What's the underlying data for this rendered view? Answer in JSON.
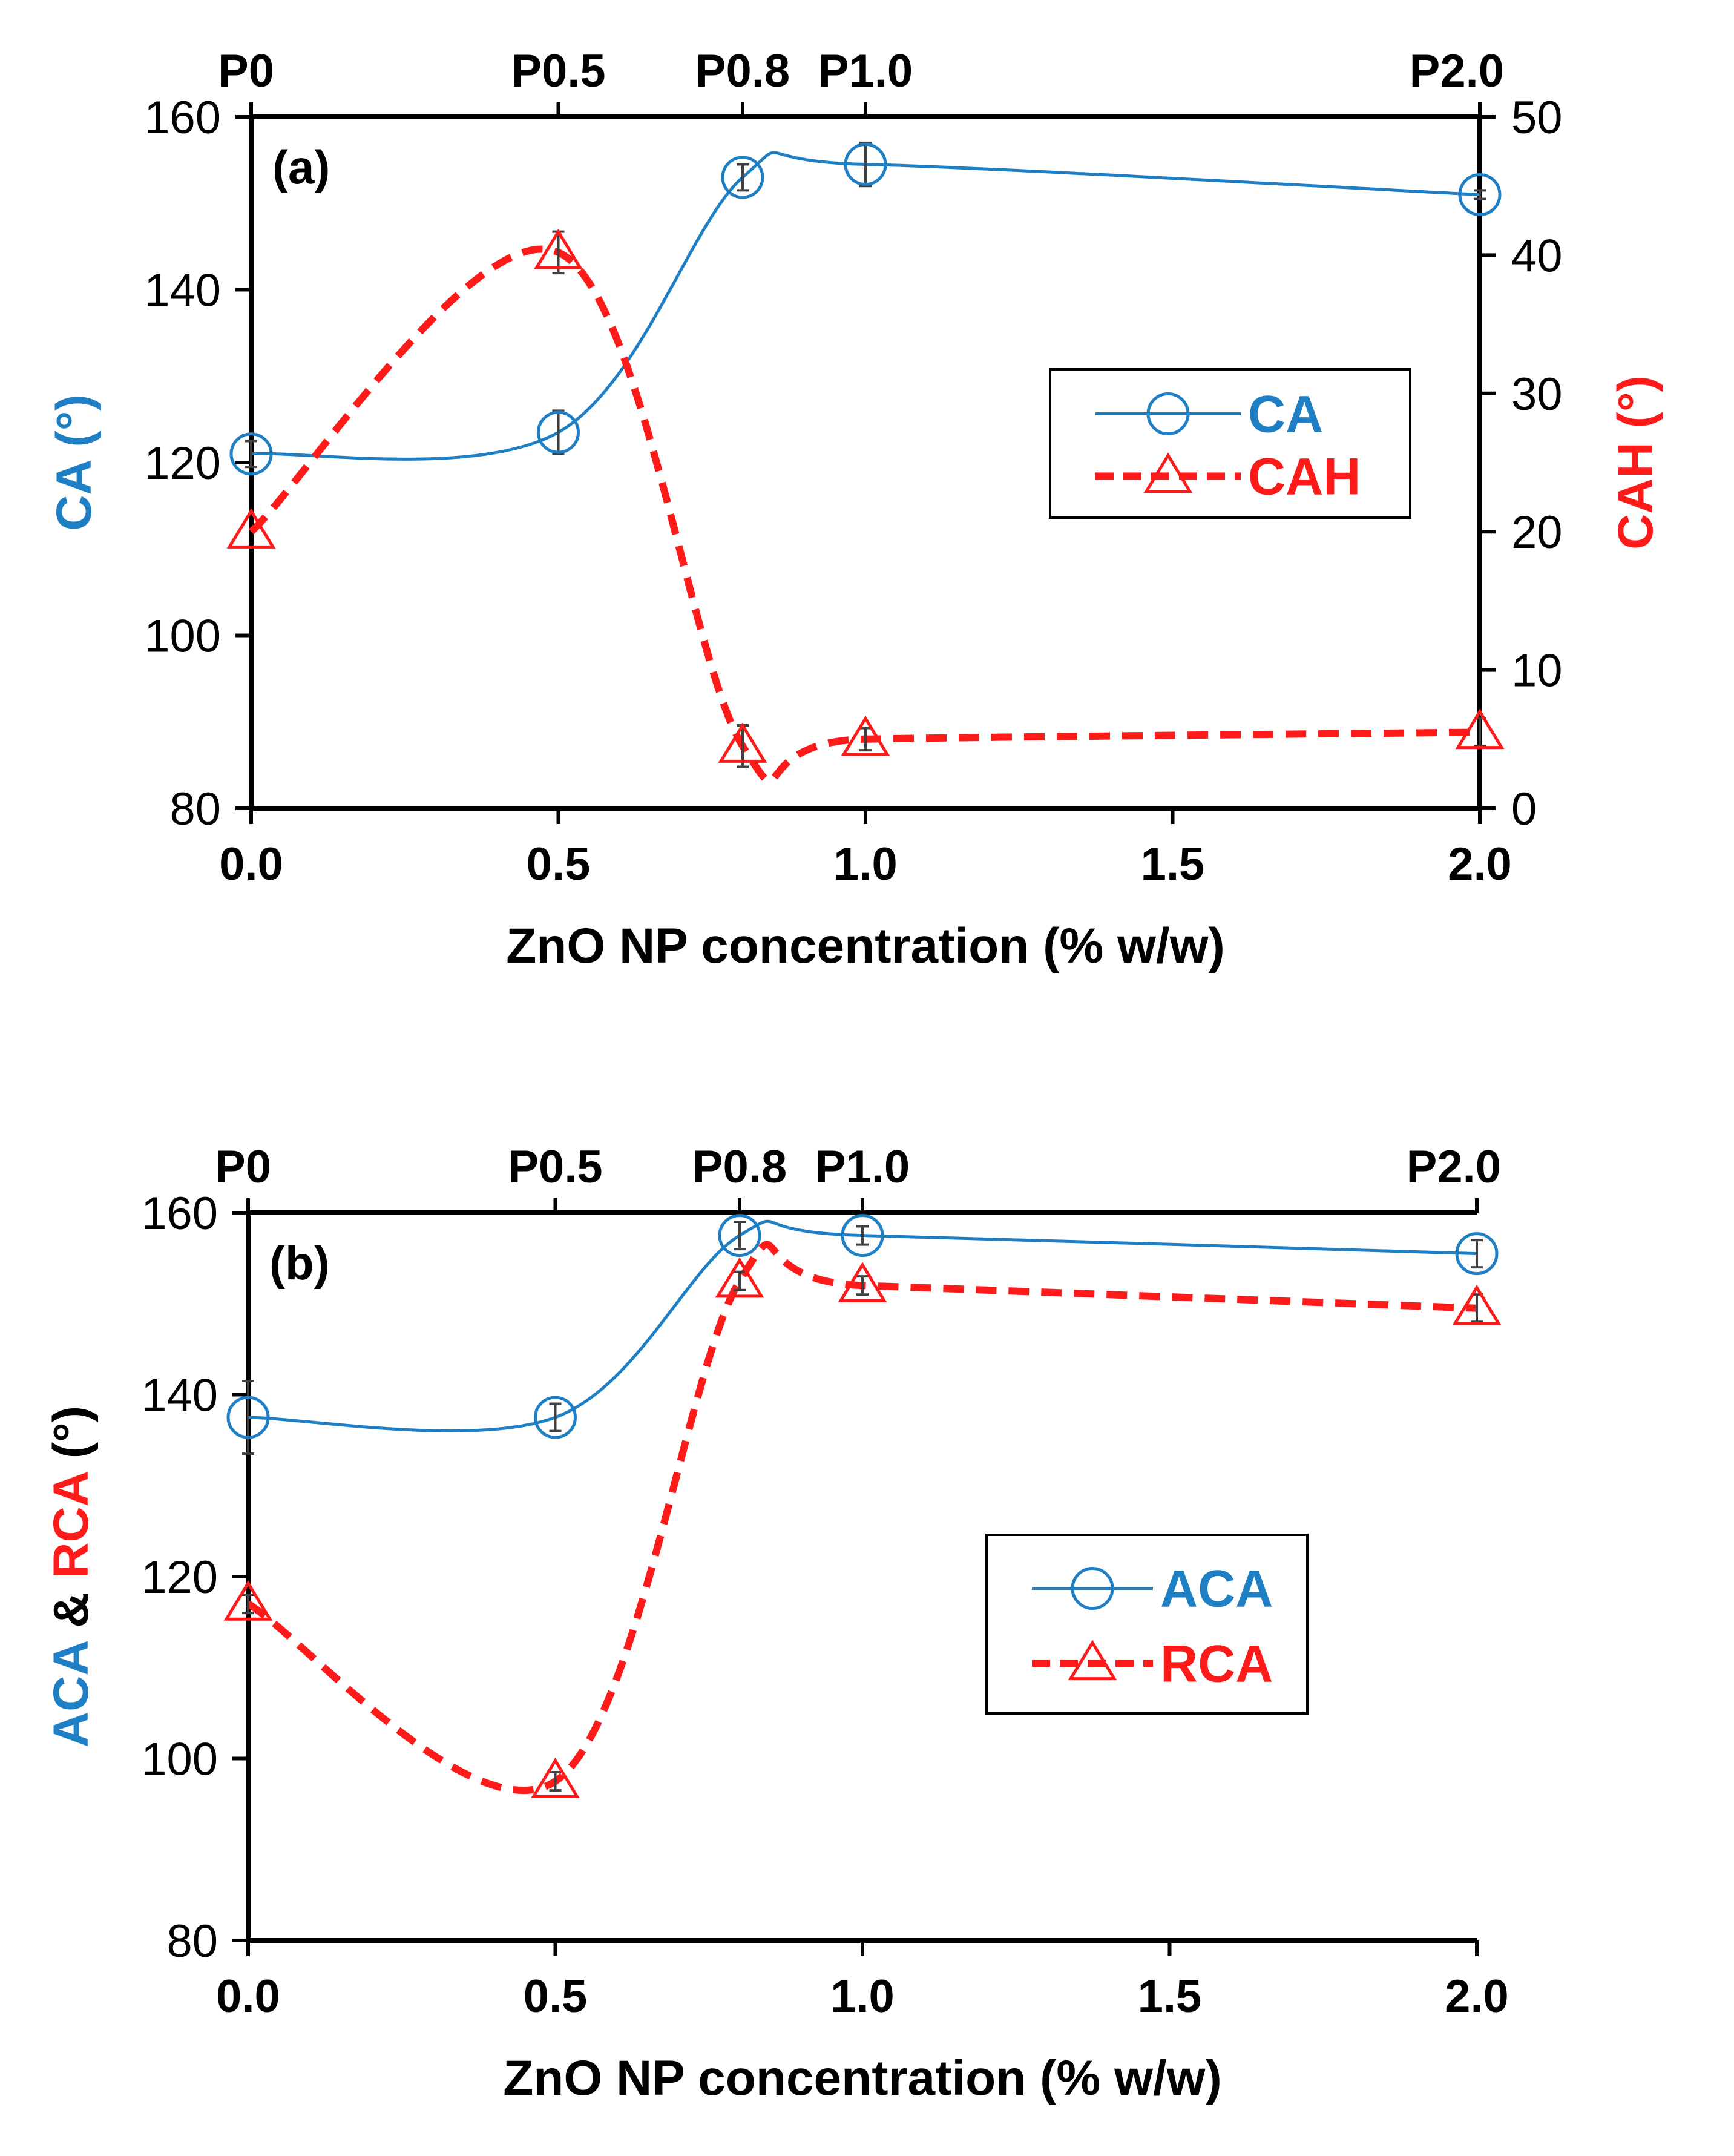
{
  "colors": {
    "blue": "#1f7fc4",
    "red": "#ff1a1a",
    "black": "#000000",
    "errorbar": "#404040"
  },
  "chart_data": [
    {
      "type": "line",
      "panel_label": "(a)",
      "xlabel": "ZnO NP concentration (% w/w)",
      "x_ticks": [
        "0.0",
        "0.5",
        "1.0",
        "1.5",
        "2.0"
      ],
      "xlim": [
        0,
        2
      ],
      "top_ticks": [
        {
          "x": 0.0,
          "label": "P0"
        },
        {
          "x": 0.5,
          "label": "P0.5"
        },
        {
          "x": 0.8,
          "label": "P0.8"
        },
        {
          "x": 1.0,
          "label": "P1.0"
        },
        {
          "x": 2.0,
          "label": "P2.0"
        }
      ],
      "y_left": {
        "label_parts": [
          {
            "text": "CA (°)",
            "color": "blue"
          }
        ],
        "lim": [
          80,
          160
        ],
        "ticks": [
          "80",
          "100",
          "120",
          "140",
          "160"
        ]
      },
      "y_right": {
        "label_parts": [
          {
            "text": "CAH (°)",
            "color": "red"
          }
        ],
        "lim": [
          0,
          50
        ],
        "ticks": [
          "0",
          "10",
          "20",
          "30",
          "40",
          "50"
        ]
      },
      "legend_position": "right",
      "series": [
        {
          "name": "CA",
          "axis": "left",
          "color": "blue",
          "marker": "circle",
          "dash": false,
          "x": [
            0.0,
            0.5,
            0.8,
            1.0,
            2.0
          ],
          "y": [
            121,
            123.5,
            153,
            154.5,
            151
          ],
          "err": [
            1.5,
            2.5,
            1.5,
            2.5,
            0.5
          ]
        },
        {
          "name": "CAH",
          "axis": "right",
          "color": "red",
          "marker": "triangle",
          "dash": true,
          "x": [
            0.0,
            0.5,
            0.8,
            1.0,
            2.0
          ],
          "y": [
            20,
            40.2,
            4.5,
            5,
            5.5
          ],
          "err": [
            0,
            1.5,
            1.5,
            0.8,
            1.0
          ]
        }
      ]
    },
    {
      "type": "line",
      "panel_label": "(b)",
      "xlabel": "ZnO NP concentration (% w/w)",
      "x_ticks": [
        "0.0",
        "0.5",
        "1.0",
        "1.5",
        "2.0"
      ],
      "xlim": [
        0,
        2
      ],
      "top_ticks": [
        {
          "x": 0.0,
          "label": "P0"
        },
        {
          "x": 0.5,
          "label": "P0.5"
        },
        {
          "x": 0.8,
          "label": "P0.8"
        },
        {
          "x": 1.0,
          "label": "P1.0"
        },
        {
          "x": 2.0,
          "label": "P2.0"
        }
      ],
      "y_left": {
        "label_parts": [
          {
            "text": "ACA",
            "color": "blue"
          },
          {
            "text": " & ",
            "color": "black"
          },
          {
            "text": "RCA",
            "color": "red"
          },
          {
            "text": " (°)",
            "color": "black"
          }
        ],
        "lim": [
          80,
          160
        ],
        "ticks": [
          "80",
          "100",
          "120",
          "140",
          "160"
        ]
      },
      "legend_position": "right",
      "series": [
        {
          "name": "ACA",
          "axis": "left",
          "color": "blue",
          "marker": "circle",
          "dash": false,
          "x": [
            0.0,
            0.5,
            0.8,
            1.0,
            2.0
          ],
          "y": [
            137.5,
            137.5,
            157.5,
            157.5,
            155.5
          ],
          "err": [
            4,
            1.5,
            1.5,
            1,
            1.5
          ]
        },
        {
          "name": "RCA",
          "axis": "left",
          "color": "red",
          "marker": "triangle",
          "dash": true,
          "x": [
            0.0,
            0.5,
            0.8,
            1.0,
            2.0
          ],
          "y": [
            117,
            97.5,
            152.5,
            152,
            149.5
          ],
          "err": [
            1,
            1,
            1,
            1,
            1.5
          ]
        }
      ]
    }
  ]
}
